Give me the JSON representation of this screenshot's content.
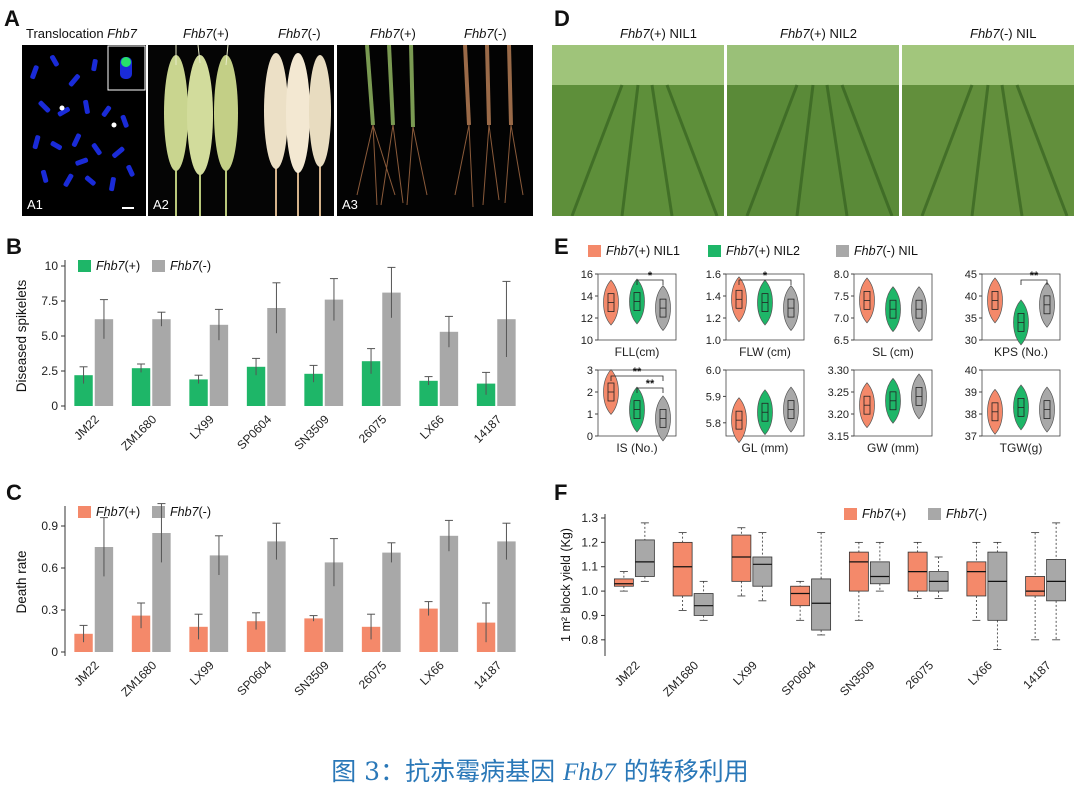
{
  "panelA": {
    "letter": "A",
    "title_prefix": "Translocation ",
    "title_gene": "Fhb7",
    "spike_plus": "(+)",
    "spike_minus": "(-)",
    "root_plus": "(+)",
    "root_minus": "(-)",
    "gene": "Fhb7",
    "labels": [
      "A1",
      "A2",
      "A3"
    ]
  },
  "panelD": {
    "letter": "D",
    "gene": "Fhb7",
    "titles": [
      "(+) NIL1",
      "(+) NIL2",
      "(-) NIL"
    ]
  },
  "chart_data": [
    {
      "panel": "B",
      "type": "bar",
      "ylabel": "Diseased spikelets",
      "ylim": [
        0,
        10
      ],
      "yticks": [
        "0",
        "2.5",
        "5.0",
        "7.5",
        "10"
      ],
      "categories": [
        "JM22",
        "ZM1680",
        "LX99",
        "SP0604",
        "SN3509",
        "26075",
        "LX66",
        "14187"
      ],
      "series": [
        {
          "name": "Fhb7(+)",
          "color": "#1eb668",
          "values": [
            2.2,
            2.7,
            1.9,
            2.8,
            2.3,
            3.2,
            1.8,
            1.6
          ],
          "errors": [
            0.6,
            0.3,
            0.3,
            0.6,
            0.6,
            0.9,
            0.3,
            0.8
          ]
        },
        {
          "name": "Fhb7(-)",
          "color": "#a8a8a8",
          "values": [
            6.2,
            6.2,
            5.8,
            7.0,
            7.6,
            8.1,
            5.3,
            6.2
          ],
          "errors": [
            1.4,
            0.5,
            1.1,
            1.8,
            1.5,
            1.8,
            1.1,
            2.7
          ]
        }
      ]
    },
    {
      "panel": "C",
      "type": "bar",
      "ylabel": "Death rate",
      "ylim": [
        0,
        1.0
      ],
      "yticks": [
        "0",
        "0.3",
        "0.6",
        "0.9"
      ],
      "categories": [
        "JM22",
        "ZM1680",
        "LX99",
        "SP0604",
        "SN3509",
        "26075",
        "LX66",
        "14187"
      ],
      "series": [
        {
          "name": "Fhb7(+)",
          "color": "#f4896a",
          "values": [
            0.13,
            0.26,
            0.18,
            0.22,
            0.24,
            0.18,
            0.31,
            0.21
          ],
          "errors": [
            0.06,
            0.09,
            0.09,
            0.06,
            0.02,
            0.09,
            0.05,
            0.14
          ]
        },
        {
          "name": "Fhb7(-)",
          "color": "#a8a8a8",
          "values": [
            0.75,
            0.85,
            0.69,
            0.79,
            0.64,
            0.71,
            0.83,
            0.79
          ],
          "errors": [
            0.21,
            0.21,
            0.14,
            0.13,
            0.17,
            0.07,
            0.11,
            0.13
          ]
        }
      ]
    },
    {
      "panel": "E",
      "type": "violin",
      "legend": [
        {
          "name": "Fhb7(+) NIL1",
          "color": "#f4896a"
        },
        {
          "name": "Fhb7(+) NIL2",
          "color": "#1eb668"
        },
        {
          "name": "Fhb7(-) NIL",
          "color": "#a8a8a8"
        }
      ],
      "subplots": [
        {
          "label": "FLL(cm)",
          "ylim": [
            10,
            16
          ],
          "yticks": [
            "10",
            "12",
            "14",
            "16"
          ],
          "medians": [
            13.4,
            13.5,
            12.9
          ],
          "sig": [
            {
              "from": 1,
              "to": 2,
              "text": "*"
            }
          ]
        },
        {
          "label": "FLW (cm)",
          "ylim": [
            1.0,
            1.6
          ],
          "yticks": [
            "1.0",
            "1.2",
            "1.4",
            "1.6"
          ],
          "medians": [
            1.37,
            1.34,
            1.29
          ],
          "sig": [
            {
              "from": 0,
              "to": 2,
              "text": "*"
            }
          ]
        },
        {
          "label": "SL (cm)",
          "ylim": [
            6.5,
            8.0
          ],
          "yticks": [
            "6.5",
            "7.0",
            "7.5",
            "8.0"
          ],
          "medians": [
            7.4,
            7.2,
            7.2
          ],
          "sig": []
        },
        {
          "label": "KPS (No.)",
          "ylim": [
            30,
            45
          ],
          "yticks": [
            "30",
            "35",
            "40",
            "45"
          ],
          "medians": [
            39,
            34,
            38
          ],
          "sig": [
            {
              "from": 1,
              "to": 2,
              "text": "**"
            }
          ]
        },
        {
          "label": "IS (No.)",
          "ylim": [
            0,
            3
          ],
          "yticks": [
            "0",
            "1",
            "2",
            "3"
          ],
          "medians": [
            2.0,
            1.2,
            0.8
          ],
          "sig": [
            {
              "from": 0,
              "to": 2,
              "text": "**"
            },
            {
              "from": 1,
              "to": 2,
              "text": "**"
            }
          ]
        },
        {
          "label": "GL (mm)",
          "ylim": [
            5.75,
            6.0
          ],
          "yticks": [
            "5.8",
            "5.9",
            "6.0"
          ],
          "medians": [
            5.81,
            5.84,
            5.85
          ],
          "sig": []
        },
        {
          "label": "GW (mm)",
          "ylim": [
            3.15,
            3.3
          ],
          "yticks": [
            "3.15",
            "3.20",
            "3.25",
            "3.30"
          ],
          "medians": [
            3.22,
            3.23,
            3.24
          ],
          "sig": []
        },
        {
          "label": "TGW(g)",
          "ylim": [
            37,
            40
          ],
          "yticks": [
            "37",
            "38",
            "39",
            "40"
          ],
          "medians": [
            38.1,
            38.3,
            38.2
          ],
          "sig": []
        }
      ]
    },
    {
      "panel": "F",
      "type": "boxplot",
      "ylabel": "1 m² block yield (Kg)",
      "ylim": [
        0.75,
        1.3
      ],
      "yticks": [
        "0.8",
        "0.9",
        "1.0",
        "1.1",
        "1.2",
        "1.3"
      ],
      "categories": [
        "JM22",
        "ZM1680",
        "LX99",
        "SP0604",
        "SN3509",
        "26075",
        "LX66",
        "14187"
      ],
      "series": [
        {
          "name": "Fhb7(+)",
          "color": "#f4896a",
          "boxes": [
            [
              1.0,
              1.02,
              1.03,
              1.05,
              1.08
            ],
            [
              0.92,
              0.98,
              1.1,
              1.2,
              1.24
            ],
            [
              0.98,
              1.04,
              1.14,
              1.23,
              1.26
            ],
            [
              0.88,
              0.94,
              0.99,
              1.02,
              1.04
            ],
            [
              0.88,
              1.0,
              1.12,
              1.16,
              1.2
            ],
            [
              0.97,
              1.0,
              1.08,
              1.16,
              1.2
            ],
            [
              0.88,
              0.98,
              1.08,
              1.12,
              1.2
            ],
            [
              0.8,
              0.98,
              1.0,
              1.06,
              1.24
            ]
          ]
        },
        {
          "name": "Fhb7(-)",
          "color": "#a8a8a8",
          "boxes": [
            [
              1.04,
              1.06,
              1.12,
              1.21,
              1.28
            ],
            [
              0.88,
              0.9,
              0.94,
              0.99,
              1.04
            ],
            [
              0.96,
              1.02,
              1.11,
              1.14,
              1.24
            ],
            [
              0.82,
              0.84,
              0.95,
              1.05,
              1.24
            ],
            [
              1.0,
              1.03,
              1.06,
              1.12,
              1.2
            ],
            [
              0.97,
              1.0,
              1.04,
              1.08,
              1.14
            ],
            [
              0.76,
              0.88,
              1.04,
              1.16,
              1.2
            ],
            [
              0.8,
              0.96,
              1.04,
              1.13,
              1.28
            ]
          ]
        }
      ]
    }
  ],
  "caption": {
    "prefix": "图 3：抗赤霉病基因 ",
    "gene": "Fhb7",
    "suffix": " 的转移利用"
  }
}
